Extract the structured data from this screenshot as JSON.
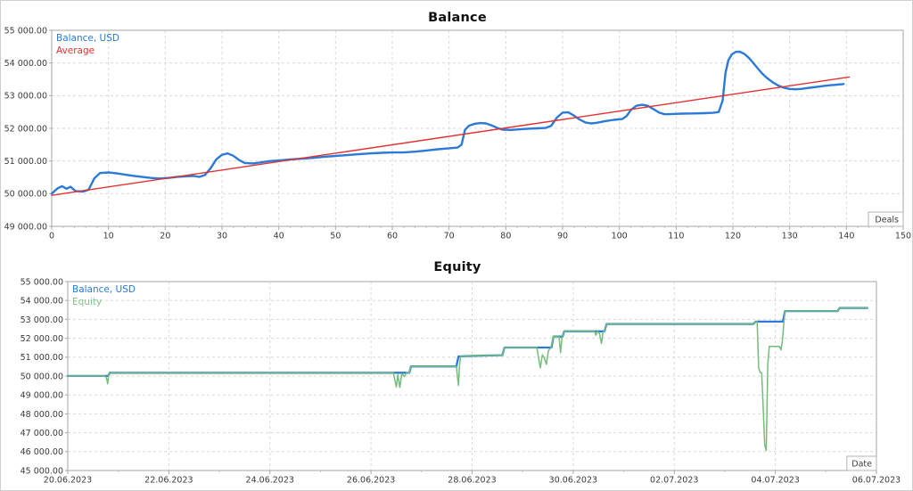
{
  "page": {
    "background": "#ffffff",
    "border_color": "#cfcfcf",
    "grid_color": "#d9d9d9",
    "frame_color": "#a6a6a6",
    "tick_text_color": "#3a3a3a"
  },
  "chart_data": [
    {
      "type": "line",
      "title": "Balance",
      "x_axis_unit": "Deals",
      "grid": "dashed",
      "legend_position": "top-left",
      "xlim": [
        0,
        150
      ],
      "ylim": [
        49000,
        55000
      ],
      "x_ticks": [
        0,
        10,
        20,
        30,
        40,
        50,
        60,
        70,
        80,
        90,
        100,
        110,
        120,
        130,
        140,
        150
      ],
      "x_tick_labels": [
        "0",
        "10",
        "20",
        "30",
        "40",
        "50",
        "60",
        "70",
        "80",
        "90",
        "100",
        "110",
        "120",
        "130",
        "140",
        "150"
      ],
      "y_ticks": [
        55000,
        54000,
        53000,
        52000,
        51000,
        50000,
        49000
      ],
      "y_tick_labels": [
        "55 000.00",
        "54 000.00",
        "53 000.00",
        "52 000.00",
        "51 000.00",
        "50 000.00",
        "49 000.00"
      ],
      "legend": [
        {
          "label": "Balance, USD",
          "color": "#2a7ad8"
        },
        {
          "label": "Average",
          "color": "#e53030"
        }
      ],
      "series": [
        {
          "name": "Balance, USD",
          "color": "#2a7ad8",
          "width": 2.4,
          "points": [
            [
              0,
              50000
            ],
            [
              1,
              50160
            ],
            [
              1.8,
              50230
            ],
            [
              2.6,
              50150
            ],
            [
              3.3,
              50210
            ],
            [
              4.2,
              50080
            ],
            [
              5.5,
              50060
            ],
            [
              6.5,
              50120
            ],
            [
              7.5,
              50470
            ],
            [
              8.5,
              50630
            ],
            [
              10,
              50650
            ],
            [
              11.5,
              50620
            ],
            [
              13,
              50580
            ],
            [
              14.5,
              50545
            ],
            [
              16,
              50510
            ],
            [
              17.5,
              50480
            ],
            [
              19,
              50465
            ],
            [
              20.5,
              50480
            ],
            [
              22,
              50510
            ],
            [
              23.5,
              50530
            ],
            [
              25,
              50545
            ],
            [
              26,
              50515
            ],
            [
              27,
              50570
            ],
            [
              28,
              50780
            ],
            [
              29,
              51050
            ],
            [
              30,
              51190
            ],
            [
              31,
              51230
            ],
            [
              32,
              51160
            ],
            [
              33,
              51030
            ],
            [
              34,
              50940
            ],
            [
              35.5,
              50925
            ],
            [
              37,
              50960
            ],
            [
              38.5,
              51000
            ],
            [
              40,
              51015
            ],
            [
              42,
              51045
            ],
            [
              44,
              51070
            ],
            [
              46,
              51095
            ],
            [
              48,
              51130
            ],
            [
              50,
              51155
            ],
            [
              52,
              51180
            ],
            [
              54,
              51205
            ],
            [
              56,
              51230
            ],
            [
              58,
              51250
            ],
            [
              60,
              51262
            ],
            [
              62,
              51262
            ],
            [
              64,
              51285
            ],
            [
              66,
              51320
            ],
            [
              68,
              51360
            ],
            [
              70,
              51390
            ],
            [
              71.5,
              51410
            ],
            [
              72.2,
              51500
            ],
            [
              72.8,
              51950
            ],
            [
              73.5,
              52080
            ],
            [
              74.5,
              52140
            ],
            [
              75.5,
              52160
            ],
            [
              76.5,
              52150
            ],
            [
              77.5,
              52090
            ],
            [
              78.5,
              52010
            ],
            [
              79.5,
              51955
            ],
            [
              81,
              51950
            ],
            [
              82.5,
              51970
            ],
            [
              84,
              51990
            ],
            [
              85.5,
              52000
            ],
            [
              87,
              52010
            ],
            [
              88,
              52080
            ],
            [
              89,
              52330
            ],
            [
              90,
              52480
            ],
            [
              91,
              52490
            ],
            [
              92,
              52390
            ],
            [
              93,
              52270
            ],
            [
              94,
              52180
            ],
            [
              95,
              52150
            ],
            [
              96,
              52170
            ],
            [
              97.5,
              52220
            ],
            [
              99,
              52260
            ],
            [
              100.5,
              52285
            ],
            [
              101.3,
              52380
            ],
            [
              102,
              52560
            ],
            [
              103,
              52690
            ],
            [
              104,
              52720
            ],
            [
              105,
              52690
            ],
            [
              106,
              52590
            ],
            [
              107,
              52480
            ],
            [
              108,
              52430
            ],
            [
              109.5,
              52440
            ],
            [
              111,
              52450
            ],
            [
              113,
              52455
            ],
            [
              115,
              52465
            ],
            [
              116.5,
              52475
            ],
            [
              117.5,
              52500
            ],
            [
              118.2,
              52850
            ],
            [
              118.7,
              53700
            ],
            [
              119.2,
              54080
            ],
            [
              119.8,
              54260
            ],
            [
              120.5,
              54340
            ],
            [
              121.2,
              54345
            ],
            [
              122,
              54280
            ],
            [
              122.8,
              54160
            ],
            [
              123.6,
              54000
            ],
            [
              124.4,
              53830
            ],
            [
              125.2,
              53670
            ],
            [
              126,
              53540
            ],
            [
              127,
              53410
            ],
            [
              128,
              53310
            ],
            [
              129,
              53240
            ],
            [
              130,
              53205
            ],
            [
              131,
              53195
            ],
            [
              132,
              53205
            ],
            [
              133.5,
              53240
            ],
            [
              135,
              53275
            ],
            [
              136.5,
              53305
            ],
            [
              138,
              53330
            ],
            [
              139.5,
              53355
            ]
          ]
        },
        {
          "name": "Average",
          "color": "#e53030",
          "width": 1.4,
          "points": [
            [
              0,
              49950
            ],
            [
              140.5,
              53570
            ]
          ]
        }
      ]
    },
    {
      "type": "line",
      "title": "Equity",
      "x_axis_unit": "Date",
      "grid": "dashed",
      "legend_position": "top-left",
      "xlim": [
        0,
        16
      ],
      "ylim": [
        45000,
        55000
      ],
      "x_ticks": [
        0,
        2,
        4,
        6,
        8,
        10,
        12,
        14,
        16
      ],
      "x_tick_labels": [
        "20.06.2023",
        "22.06.2023",
        "24.06.2023",
        "26.06.2023",
        "28.06.2023",
        "30.06.2023",
        "02.07.2023",
        "04.07.2023",
        "06.07.2023"
      ],
      "y_ticks": [
        55000,
        54000,
        53000,
        52000,
        51000,
        50000,
        49000,
        48000,
        47000,
        46000,
        45000
      ],
      "y_tick_labels": [
        "55 000.00",
        "54 000.00",
        "53 000.00",
        "52 000.00",
        "51 000.00",
        "50 000.00",
        "49 000.00",
        "48 000.00",
        "47 000.00",
        "46 000.00",
        "45 000.00"
      ],
      "legend": [
        {
          "label": "Balance, USD",
          "color": "#2a7ad8"
        },
        {
          "label": "Equity",
          "color": "#83c38c"
        }
      ],
      "series": [
        {
          "name": "Balance, USD",
          "color": "#2a7ad8",
          "width": 2.3,
          "points": [
            [
              0,
              50005
            ],
            [
              0.8,
              50005
            ],
            [
              0.83,
              50175
            ],
            [
              6.76,
              50175
            ],
            [
              6.79,
              50510
            ],
            [
              7.69,
              50510
            ],
            [
              7.73,
              51040
            ],
            [
              7.9,
              51050
            ],
            [
              8.15,
              51075
            ],
            [
              8.4,
              51090
            ],
            [
              8.6,
              51105
            ],
            [
              8.64,
              51510
            ],
            [
              9.57,
              51510
            ],
            [
              9.61,
              52090
            ],
            [
              9.79,
              52090
            ],
            [
              9.82,
              52370
            ],
            [
              10.62,
              52370
            ],
            [
              10.66,
              52750
            ],
            [
              13.56,
              52750
            ],
            [
              13.61,
              52880
            ],
            [
              14.15,
              52880
            ],
            [
              14.19,
              53440
            ],
            [
              15.23,
              53440
            ],
            [
              15.27,
              53600
            ],
            [
              15.82,
              53600
            ]
          ]
        },
        {
          "name": "Equity",
          "color": "#74bd7c",
          "width": 1.5,
          "points": [
            [
              0,
              50005
            ],
            [
              0.74,
              50005
            ],
            [
              0.77,
              49860
            ],
            [
              0.79,
              49590
            ],
            [
              0.81,
              50100
            ],
            [
              0.83,
              50175
            ],
            [
              6.44,
              50175
            ],
            [
              6.47,
              49800
            ],
            [
              6.5,
              49430
            ],
            [
              6.53,
              50070
            ],
            [
              6.57,
              49400
            ],
            [
              6.61,
              50120
            ],
            [
              6.66,
              49980
            ],
            [
              6.7,
              50175
            ],
            [
              6.76,
              50175
            ],
            [
              6.79,
              50510
            ],
            [
              7.69,
              50510
            ],
            [
              7.715,
              49850
            ],
            [
              7.73,
              49510
            ],
            [
              7.75,
              50520
            ],
            [
              7.77,
              51040
            ],
            [
              7.9,
              51050
            ],
            [
              8.15,
              51075
            ],
            [
              8.4,
              51090
            ],
            [
              8.6,
              51105
            ],
            [
              8.64,
              51510
            ],
            [
              9.28,
              51510
            ],
            [
              9.32,
              50900
            ],
            [
              9.35,
              50440
            ],
            [
              9.39,
              51120
            ],
            [
              9.43,
              50950
            ],
            [
              9.47,
              50620
            ],
            [
              9.51,
              51350
            ],
            [
              9.56,
              51510
            ],
            [
              9.61,
              52090
            ],
            [
              9.72,
              52090
            ],
            [
              9.75,
              51240
            ],
            [
              9.78,
              52090
            ],
            [
              9.82,
              52370
            ],
            [
              10.42,
              52370
            ],
            [
              10.45,
              52160
            ],
            [
              10.48,
              52370
            ],
            [
              10.52,
              52250
            ],
            [
              10.56,
              51720
            ],
            [
              10.59,
              52320
            ],
            [
              10.62,
              52370
            ],
            [
              10.66,
              52750
            ],
            [
              13.4,
              52750
            ],
            [
              13.56,
              52750
            ],
            [
              13.61,
              52880
            ],
            [
              13.64,
              52880
            ],
            [
              13.67,
              50420
            ],
            [
              13.7,
              50200
            ],
            [
              13.73,
              50150
            ],
            [
              13.76,
              48300
            ],
            [
              13.79,
              46350
            ],
            [
              13.82,
              46060
            ],
            [
              13.85,
              50600
            ],
            [
              13.88,
              51570
            ],
            [
              14.08,
              51570
            ],
            [
              14.11,
              51380
            ],
            [
              14.14,
              51900
            ],
            [
              14.17,
              52880
            ],
            [
              14.19,
              53440
            ],
            [
              15.23,
              53440
            ],
            [
              15.27,
              53600
            ],
            [
              15.82,
              53600
            ]
          ]
        }
      ]
    }
  ]
}
